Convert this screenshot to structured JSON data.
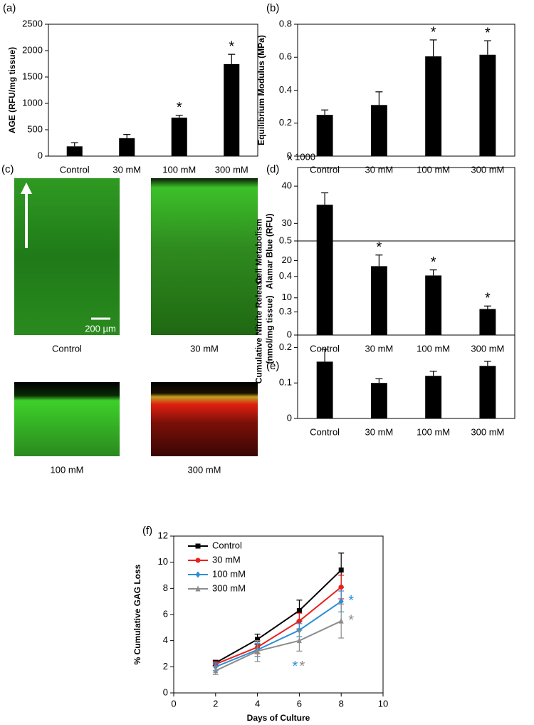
{
  "chart_data": [
    {
      "type": "bar",
      "panel_label": "(a)",
      "ylabel": "AGE (RFU/mg tissue)",
      "categories": [
        "Control",
        "30 mM",
        "100 mM",
        "300 mM"
      ],
      "values": [
        185,
        340,
        730,
        1745
      ],
      "errors": [
        70,
        70,
        45,
        185
      ],
      "significance": [
        null,
        null,
        "*",
        "*"
      ],
      "color": "#000000",
      "ylim": [
        0,
        2500
      ],
      "yticks": [
        0,
        500,
        1000,
        1500,
        2000,
        2500
      ]
    },
    {
      "type": "bar",
      "panel_label": "(b)",
      "ylabel": "Equilibrium Modulus (MPa)",
      "categories": [
        "Control",
        "30 mM",
        "100 mM",
        "300 mM"
      ],
      "values": [
        0.25,
        0.31,
        0.605,
        0.615
      ],
      "errors": [
        0.03,
        0.08,
        0.1,
        0.085
      ],
      "significance": [
        null,
        null,
        "*",
        "*"
      ],
      "color": "#000000",
      "ylim": [
        0,
        0.8
      ],
      "yticks": [
        0,
        0.2,
        0.4,
        0.6,
        0.8
      ]
    },
    {
      "type": "bar",
      "panel_label": "(d)",
      "ylabel": [
        "Cell Metabolism",
        "Alamar Blue (RFU)"
      ],
      "y_multiplier_label": "x 1000",
      "categories": [
        "Control",
        "30 mM",
        "100 mM",
        "300 mM"
      ],
      "values": [
        35,
        18.5,
        16,
        7
      ],
      "errors": [
        3.2,
        3,
        1.5,
        0.8
      ],
      "significance": [
        null,
        "*",
        "*",
        "*"
      ],
      "color": "#000000",
      "ylim": [
        0,
        45
      ],
      "yticks": [
        0,
        10,
        20,
        30,
        40
      ]
    },
    {
      "type": "bar",
      "panel_label": "(e)",
      "ylabel": [
        "Cumulative Nitrite Release",
        "(nmol/mg tissue)"
      ],
      "categories": [
        "Control",
        "30 mM",
        "100 mM",
        "300 mM"
      ],
      "values": [
        0.16,
        0.1,
        0.12,
        0.148
      ],
      "errors": [
        0.035,
        0.012,
        0.013,
        0.013
      ],
      "significance": [
        null,
        null,
        null,
        null
      ],
      "color": "#000000",
      "ylim": [
        0,
        0.5
      ],
      "yticks": [
        0,
        0.1,
        0.2,
        0.3,
        0.4,
        0.5
      ]
    },
    {
      "type": "line",
      "panel_label": "(f)",
      "ylabel": "% Cumulative GAG Loss",
      "xlabel": "Days of Culture",
      "x": [
        2,
        4,
        6,
        8
      ],
      "legend": "upper left",
      "series": [
        {
          "name": "Control",
          "color": "#000000",
          "marker": "square",
          "values": [
            2.3,
            4.1,
            6.3,
            9.4
          ],
          "errors": [
            0.2,
            0.4,
            0.8,
            1.3
          ],
          "significance": [
            null,
            null,
            null,
            null
          ]
        },
        {
          "name": "30 mM",
          "color": "#e8221c",
          "marker": "circle",
          "values": [
            2.2,
            3.5,
            5.5,
            8.1
          ],
          "errors": [
            0.2,
            0.5,
            0.6,
            0.9
          ],
          "significance": [
            null,
            null,
            null,
            null
          ]
        },
        {
          "name": "100 mM",
          "color": "#2a8fd6",
          "marker": "diamond",
          "values": [
            2.0,
            3.3,
            4.8,
            7.0
          ],
          "errors": [
            0.3,
            0.5,
            0.5,
            0.8
          ],
          "significance": [
            null,
            null,
            "*",
            "*"
          ]
        },
        {
          "name": "300 mM",
          "color": "#8c8c8c",
          "marker": "triangle",
          "values": [
            1.7,
            3.2,
            4.0,
            5.5
          ],
          "errors": [
            0.3,
            0.8,
            0.8,
            1.3
          ],
          "significance": [
            null,
            null,
            "*",
            "*"
          ]
        }
      ],
      "xlim": [
        0,
        10
      ],
      "xticks": [
        0,
        2,
        4,
        6,
        8,
        10
      ],
      "ylim": [
        0,
        12
      ],
      "yticks": [
        0,
        2,
        4,
        6,
        8,
        10,
        12
      ]
    }
  ],
  "images": {
    "panel_label": "(c)",
    "scale_bar": "200 µm",
    "captions": [
      "Control",
      "30 mM",
      "100 mM",
      "300 mM"
    ]
  }
}
